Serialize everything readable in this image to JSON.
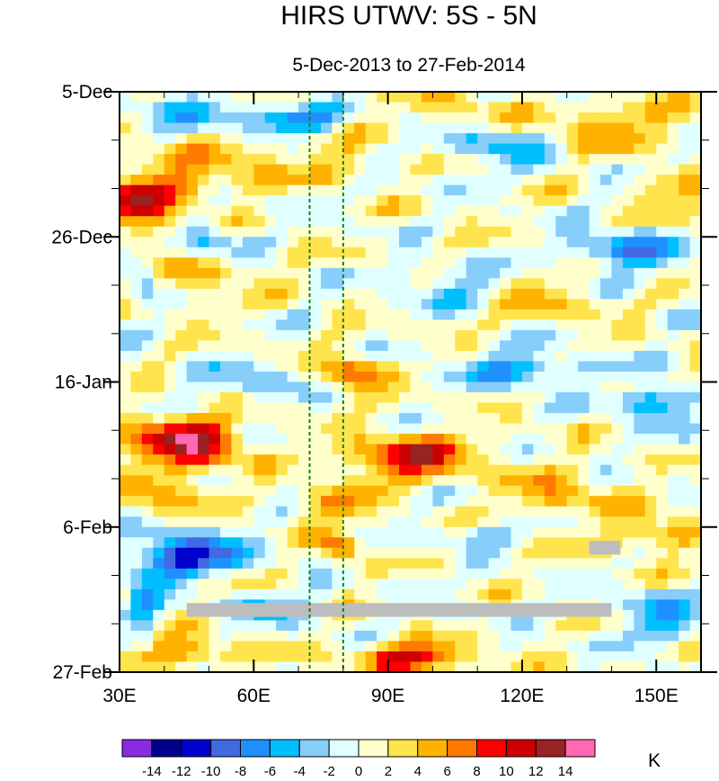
{
  "chart_data": {
    "type": "heatmap",
    "title": "HIRS UTWV: 5S - 5N",
    "subtitle": "5-Dec-2013 to 27-Feb-2014",
    "xlabel": "",
    "ylabel": "",
    "x_range": [
      30,
      160
    ],
    "y_range_days": [
      0,
      84
    ],
    "x_ticks": [
      {
        "value": 30,
        "label": "30E"
      },
      {
        "value": 60,
        "label": "60E"
      },
      {
        "value": 90,
        "label": "90E"
      },
      {
        "value": 120,
        "label": "120E"
      },
      {
        "value": 150,
        "label": "150E"
      }
    ],
    "y_ticks": [
      {
        "day": 0,
        "label": "5-Dec"
      },
      {
        "day": 21,
        "label": "26-Dec"
      },
      {
        "day": 42,
        "label": "16-Jan"
      },
      {
        "day": 63,
        "label": "6-Feb"
      },
      {
        "day": 84,
        "label": "27-Feb"
      }
    ],
    "reference_lines_lon": [
      72.5,
      80
    ],
    "colorbar": {
      "unit": "K",
      "levels": [
        -14,
        -12,
        -10,
        -8,
        -6,
        -4,
        -2,
        0,
        2,
        4,
        6,
        8,
        10,
        12,
        14
      ],
      "labels": [
        "-14",
        "-12",
        "-10",
        "-8",
        "-6",
        "-4",
        "-2",
        "0",
        "2",
        "4",
        "6",
        "8",
        "10",
        "12",
        "14"
      ],
      "colors": [
        "#8a2be2",
        "#00008b",
        "#0000cd",
        "#4169e1",
        "#1e90ff",
        "#00bfff",
        "#87cefa",
        "#e0ffff",
        "#ffffcc",
        "#ffe44d",
        "#ffb300",
        "#ff7a00",
        "#ff0000",
        "#cc0000",
        "#992222",
        "#ff69b4"
      ]
    },
    "anomaly_blobs": [
      {
        "lon": 34,
        "day": 17,
        "value": 9,
        "rlon": 6,
        "rday": 3
      },
      {
        "lon": 40,
        "day": 14,
        "value": 5,
        "rlon": 10,
        "rday": 5
      },
      {
        "lon": 55,
        "day": 11,
        "value": 4,
        "rlon": 12,
        "rday": 3
      },
      {
        "lon": 78,
        "day": 10,
        "value": 3,
        "rlon": 10,
        "rday": 3
      },
      {
        "lon": 105,
        "day": 2,
        "value": 3,
        "rlon": 15,
        "rday": 2
      },
      {
        "lon": 140,
        "day": 5,
        "value": 5,
        "rlon": 15,
        "rday": 3
      },
      {
        "lon": 155,
        "day": 15,
        "value": 4,
        "rlon": 8,
        "rday": 3
      },
      {
        "lon": 45,
        "day": 27,
        "value": 4,
        "rlon": 12,
        "rday": 3
      },
      {
        "lon": 125,
        "day": 30,
        "value": 4,
        "rlon": 12,
        "rday": 3
      },
      {
        "lon": 82,
        "day": 41,
        "value": 8,
        "rlon": 6,
        "rday": 3
      },
      {
        "lon": 48,
        "day": 51,
        "value": 9,
        "rlon": 10,
        "rday": 3
      },
      {
        "lon": 40,
        "day": 50,
        "value": 5,
        "rlon": 12,
        "rday": 4
      },
      {
        "lon": 95,
        "day": 53,
        "value": 10,
        "rlon": 14,
        "rday": 3
      },
      {
        "lon": 78,
        "day": 60,
        "value": 6,
        "rlon": 8,
        "rday": 2
      },
      {
        "lon": 79,
        "day": 66,
        "value": 8,
        "rlon": 4,
        "rday": 2
      },
      {
        "lon": 40,
        "day": 58,
        "value": 5,
        "rlon": 10,
        "rday": 3
      },
      {
        "lon": 128,
        "day": 58,
        "value": 5,
        "rlon": 12,
        "rday": 3
      },
      {
        "lon": 148,
        "day": 64,
        "value": 5,
        "rlon": 10,
        "rday": 3
      },
      {
        "lon": 95,
        "day": 82,
        "value": 11,
        "rlon": 12,
        "rday": 2
      },
      {
        "lon": 45,
        "day": 81,
        "value": 7,
        "rlon": 10,
        "rday": 2
      },
      {
        "lon": 50,
        "day": 3,
        "value": -5,
        "rlon": 18,
        "rday": 2
      },
      {
        "lon": 70,
        "day": 4,
        "value": -7,
        "rlon": 8,
        "rday": 2
      },
      {
        "lon": 115,
        "day": 8,
        "value": -5,
        "rlon": 12,
        "rday": 3
      },
      {
        "lon": 50,
        "day": 21,
        "value": -5,
        "rlon": 6,
        "rday": 3
      },
      {
        "lon": 143,
        "day": 23,
        "value": -7,
        "rlon": 12,
        "rday": 3
      },
      {
        "lon": 105,
        "day": 28,
        "value": -4,
        "rlon": 14,
        "rday": 3
      },
      {
        "lon": 35,
        "day": 27,
        "value": -6,
        "rlon": 4,
        "rday": 3
      },
      {
        "lon": 120,
        "day": 40,
        "value": -6,
        "rlon": 14,
        "rday": 3
      },
      {
        "lon": 60,
        "day": 42,
        "value": -5,
        "rlon": 12,
        "rday": 2
      },
      {
        "lon": 150,
        "day": 45,
        "value": -7,
        "rlon": 8,
        "rday": 3
      },
      {
        "lon": 45,
        "day": 67,
        "value": -12,
        "rlon": 12,
        "rday": 3
      },
      {
        "lon": 110,
        "day": 64,
        "value": -3,
        "rlon": 10,
        "rday": 2
      },
      {
        "lon": 150,
        "day": 76,
        "value": -6,
        "rlon": 8,
        "rday": 4
      },
      {
        "lon": 65,
        "day": 75,
        "value": -4,
        "rlon": 12,
        "rday": 2
      },
      {
        "lon": 35,
        "day": 74,
        "value": -6,
        "rlon": 4,
        "rday": 4
      }
    ],
    "missing_data": [
      {
        "lon_start": 45,
        "lon_end": 140,
        "day_start": 74,
        "day_end": 76
      },
      {
        "lon_start": 135,
        "lon_end": 142,
        "day_start": 65,
        "day_end": 67
      }
    ]
  }
}
